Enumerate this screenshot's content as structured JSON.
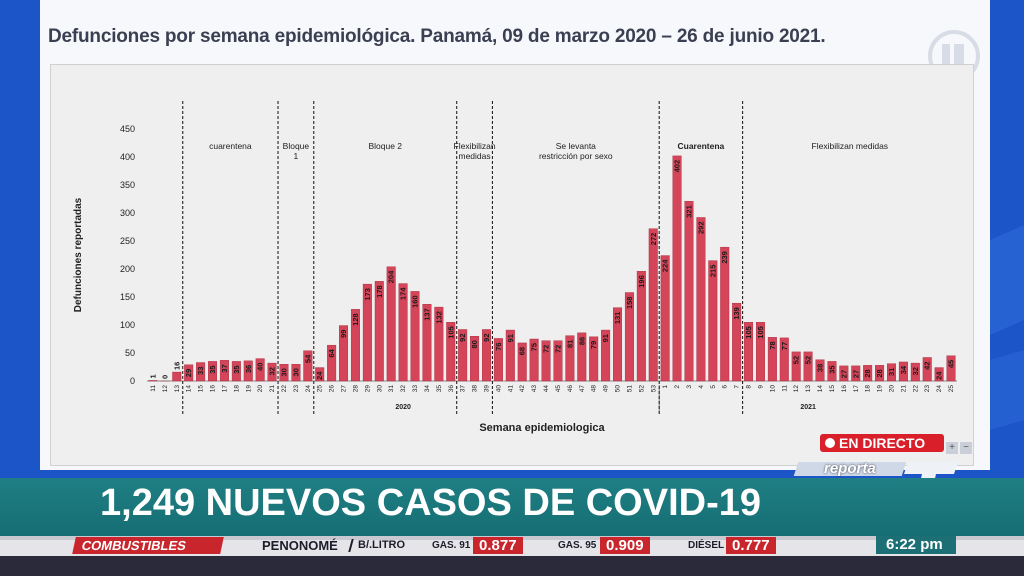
{
  "slide": {
    "title": "Defunciones por semana epidemiológica. Panamá, 09 de marzo 2020 – 26 de junio  2021."
  },
  "colors": {
    "background": "#1b55c8",
    "bar": "#d4455a",
    "headline_bar": "#1a787d",
    "ticker_red": "#c8262c",
    "live_red": "#d81f2a"
  },
  "chart_data": {
    "type": "bar",
    "xlabel": "Semana epidemiologica",
    "ylabel": "Defunciones reportadas",
    "ylim": [
      0,
      450
    ],
    "yticks": [
      0,
      50,
      100,
      150,
      200,
      250,
      300,
      350,
      400,
      450
    ],
    "grid": false,
    "legend": "none",
    "categories": [
      "11",
      "12",
      "13",
      "14",
      "15",
      "16",
      "17",
      "18",
      "19",
      "20",
      "21",
      "22",
      "23",
      "24",
      "25",
      "26",
      "27",
      "28",
      "29",
      "30",
      "31",
      "32",
      "33",
      "34",
      "35",
      "36",
      "37",
      "38",
      "39",
      "40",
      "41",
      "42",
      "43",
      "44",
      "45",
      "46",
      "47",
      "48",
      "49",
      "50",
      "51",
      "52",
      "53",
      "1",
      "2",
      "3",
      "4",
      "5",
      "6",
      "7",
      "8",
      "9",
      "10",
      "11",
      "12",
      "13",
      "14",
      "15",
      "16",
      "17",
      "18",
      "19",
      "20",
      "21",
      "22",
      "23",
      "24",
      "25"
    ],
    "values": [
      1,
      0,
      16,
      29,
      33,
      35,
      37,
      35,
      36,
      40,
      32,
      30,
      30,
      54,
      24,
      64,
      99,
      128,
      173,
      178,
      204,
      174,
      160,
      137,
      132,
      105,
      92,
      80,
      92,
      76,
      91,
      68,
      75,
      72,
      72,
      81,
      86,
      79,
      91,
      131,
      158,
      196,
      272,
      224,
      402,
      321,
      292,
      215,
      239,
      139,
      105,
      105,
      78,
      77,
      52,
      52,
      38,
      35,
      27,
      27,
      28,
      28,
      31,
      34,
      32,
      42,
      24,
      45
    ],
    "years": [
      {
        "label": "2020",
        "first_index": 0,
        "last_index": 42
      },
      {
        "label": "2021",
        "first_index": 43,
        "last_index": 67
      }
    ],
    "phases": [
      {
        "label_lines": [
          "cuarentena"
        ],
        "start_index": 3,
        "end_index": 10
      },
      {
        "label_lines": [
          "Bloque",
          "1"
        ],
        "start_index": 11,
        "end_index": 13
      },
      {
        "label_lines": [
          "Bloque 2"
        ],
        "start_index": 14,
        "end_index": 25
      },
      {
        "label_lines": [
          "Flexibilizan",
          "medidas"
        ],
        "start_index": 26,
        "end_index": 28
      },
      {
        "label_lines": [
          "Se levanta",
          "restricción por sexo"
        ],
        "start_index": 29,
        "end_index": 42
      },
      {
        "label_lines": [
          "Cuarentena"
        ],
        "start_index": 43,
        "end_index": 49
      },
      {
        "label_lines": [
          "Flexibilizan medidas"
        ],
        "start_index": 50,
        "end_index": 67
      }
    ],
    "divider_after_indices": [
      2,
      10,
      13,
      25,
      28,
      42,
      49
    ]
  },
  "overlay": {
    "live_label": "EN DIRECTO",
    "brand_word": "reporta",
    "plus": "+",
    "minus": "−"
  },
  "headline": "1,249 NUEVOS CASOS DE COVID-19",
  "ticker": {
    "category": "COMBUSTIBLES",
    "location": "PENONOMÉ",
    "unit": "B/.LITRO",
    "items": [
      {
        "label": "GAS. 91",
        "price": "0.877"
      },
      {
        "label": "GAS. 95",
        "price": "0.909"
      },
      {
        "label": "DIÉSEL",
        "price": "0.777"
      }
    ],
    "time": "6:22 pm"
  }
}
